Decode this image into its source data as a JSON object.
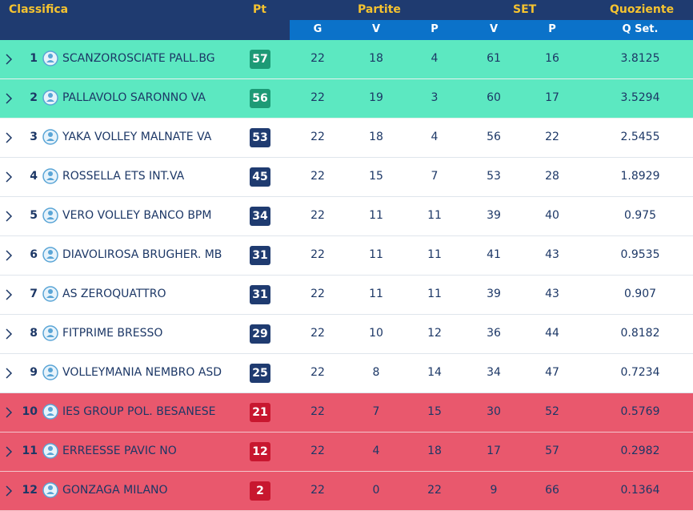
{
  "header": {
    "classifica": "Classifica",
    "pt": "Pt",
    "partite": "Partite",
    "set": "SET",
    "quoziente": "Quoziente",
    "sub": {
      "g": "G",
      "v": "V",
      "p": "P",
      "set_v": "V",
      "set_p": "P",
      "qset": "Q Set."
    }
  },
  "colors": {
    "header_bg": "#1f3b70",
    "subheader_bg": "#0b72c9",
    "header_text": "#f5c330",
    "promotion_row": "#5ce8c1",
    "relegation_row": "#e9586d",
    "badge_promotion": "#1d9a76",
    "badge_neutral": "#1f3b70",
    "badge_relegation": "#c8172f"
  },
  "rows": [
    {
      "pos": "1",
      "team": "SCANZOROSCIATE PALL.BG",
      "pt": "57",
      "g": "22",
      "v": "18",
      "p": "4",
      "set_v": "61",
      "set_p": "16",
      "q": "3.8125",
      "zone": "top"
    },
    {
      "pos": "2",
      "team": "PALLAVOLO SARONNO VA",
      "pt": "56",
      "g": "22",
      "v": "19",
      "p": "3",
      "set_v": "60",
      "set_p": "17",
      "q": "3.5294",
      "zone": "top"
    },
    {
      "pos": "3",
      "team": "YAKA VOLLEY MALNATE VA",
      "pt": "53",
      "g": "22",
      "v": "18",
      "p": "4",
      "set_v": "56",
      "set_p": "22",
      "q": "2.5455",
      "zone": "mid"
    },
    {
      "pos": "4",
      "team": "ROSSELLA ETS INT.VA",
      "pt": "45",
      "g": "22",
      "v": "15",
      "p": "7",
      "set_v": "53",
      "set_p": "28",
      "q": "1.8929",
      "zone": "mid"
    },
    {
      "pos": "5",
      "team": "VERO VOLLEY BANCO BPM",
      "pt": "34",
      "g": "22",
      "v": "11",
      "p": "11",
      "set_v": "39",
      "set_p": "40",
      "q": "0.975",
      "zone": "mid"
    },
    {
      "pos": "6",
      "team": "DIAVOLIROSA BRUGHER. MB",
      "pt": "31",
      "g": "22",
      "v": "11",
      "p": "11",
      "set_v": "41",
      "set_p": "43",
      "q": "0.9535",
      "zone": "mid"
    },
    {
      "pos": "7",
      "team": "AS ZEROQUATTRO",
      "pt": "31",
      "g": "22",
      "v": "11",
      "p": "11",
      "set_v": "39",
      "set_p": "43",
      "q": "0.907",
      "zone": "mid"
    },
    {
      "pos": "8",
      "team": "FITPRIME BRESSO",
      "pt": "29",
      "g": "22",
      "v": "10",
      "p": "12",
      "set_v": "36",
      "set_p": "44",
      "q": "0.8182",
      "zone": "mid"
    },
    {
      "pos": "9",
      "team": "VOLLEYMANIA NEMBRO ASD",
      "pt": "25",
      "g": "22",
      "v": "8",
      "p": "14",
      "set_v": "34",
      "set_p": "47",
      "q": "0.7234",
      "zone": "mid"
    },
    {
      "pos": "10",
      "team": "IES GROUP POL. BESANESE",
      "pt": "21",
      "g": "22",
      "v": "7",
      "p": "15",
      "set_v": "30",
      "set_p": "52",
      "q": "0.5769",
      "zone": "bottom"
    },
    {
      "pos": "11",
      "team": "ERREESSE PAVIC NO",
      "pt": "12",
      "g": "22",
      "v": "4",
      "p": "18",
      "set_v": "17",
      "set_p": "57",
      "q": "0.2982",
      "zone": "bottom"
    },
    {
      "pos": "12",
      "team": "GONZAGA MILANO",
      "pt": "2",
      "g": "22",
      "v": "0",
      "p": "22",
      "set_v": "9",
      "set_p": "66",
      "q": "0.1364",
      "zone": "bottom"
    }
  ]
}
